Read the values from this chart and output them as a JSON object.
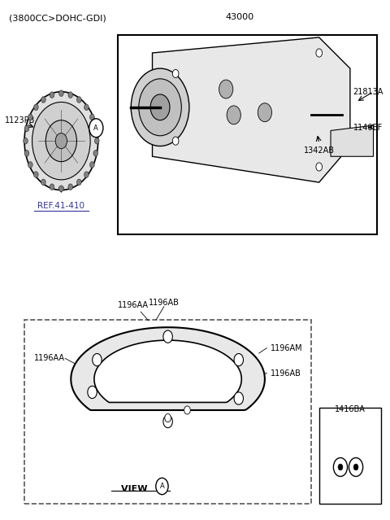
{
  "title": "(3800CC>DOHC-GDI)",
  "bg_color": "#ffffff",
  "part_label_43000": "43000",
  "part_label_1123PB": "1123PB",
  "part_label_ref": "REF.41-410",
  "part_label_21813A": "21813A",
  "part_label_1342AB": "1342AB",
  "part_label_1140EF": "1140EF",
  "part_label_1196AB_top": "1196AB",
  "part_label_1196AA_top": "1196AA",
  "part_label_1196AA_left": "1196AA",
  "part_label_1196AM": "1196AM",
  "part_label_1196AB_right": "1196AB",
  "part_label_1416BA": "1416BA",
  "view_label": "VIEW",
  "view_circle": "A",
  "circle_label": "A"
}
